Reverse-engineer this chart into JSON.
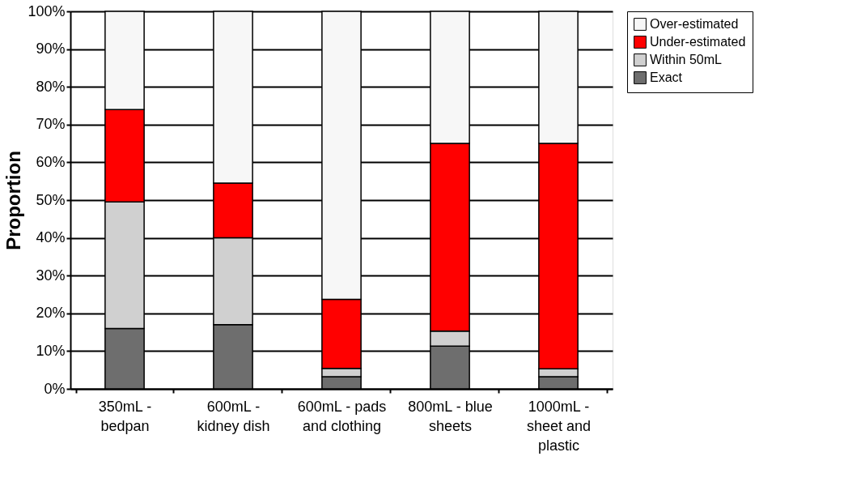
{
  "chart_data": {
    "type": "bar",
    "stacked": true,
    "ylabel": "Proportion",
    "categories": [
      "350mL - bedpan",
      "600mL - kidney dish",
      "600mL - pads and clothing",
      "800mL - blue sheets",
      "1000mL - sheet and plastic"
    ],
    "series": [
      {
        "name": "Exact",
        "color": "#6e6e6e",
        "values": [
          16,
          17,
          3.2,
          11.3,
          3.2
        ]
      },
      {
        "name": "Within 50mL",
        "color": "#d0d0d0",
        "values": [
          33.5,
          23,
          2.2,
          4.0,
          2.1
        ]
      },
      {
        "name": "Under-estimated",
        "color": "#ff0000",
        "values": [
          24.5,
          14.5,
          18.3,
          49.7,
          59.7
        ]
      },
      {
        "name": "Over-estimated",
        "color": "#f7f7f7",
        "values": [
          26,
          45.5,
          76.3,
          35.0,
          35.0
        ]
      }
    ],
    "ylim": [
      0,
      100
    ],
    "yticks": [
      {
        "value": 0,
        "label": "0%"
      },
      {
        "value": 10,
        "label": "10%"
      },
      {
        "value": 20,
        "label": "20%"
      },
      {
        "value": 30,
        "label": "30%"
      },
      {
        "value": 40,
        "label": "40%"
      },
      {
        "value": 50,
        "label": "50%"
      },
      {
        "value": 60,
        "label": "60%"
      },
      {
        "value": 70,
        "label": "70%"
      },
      {
        "value": 80,
        "label": "80%"
      },
      {
        "value": 90,
        "label": "90%"
      },
      {
        "value": 100,
        "label": "100%"
      }
    ],
    "grid": "y",
    "legend": "right"
  }
}
